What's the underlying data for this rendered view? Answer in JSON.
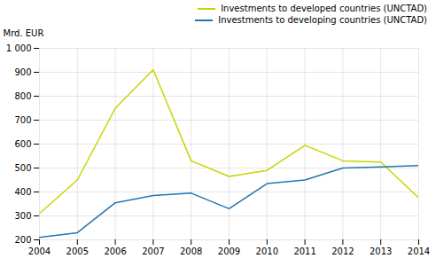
{
  "chart_data": {
    "type": "line",
    "x": [
      2004,
      2005,
      2006,
      2007,
      2008,
      2009,
      2010,
      2011,
      2012,
      2013,
      2014
    ],
    "series": [
      {
        "name": "Investments to developed countries (UNCTAD)",
        "color": "#c8d400",
        "values": [
          310,
          450,
          750,
          910,
          530,
          465,
          490,
          595,
          530,
          525,
          375
        ]
      },
      {
        "name": "Investments to developing countries (UNCTAD)",
        "color": "#1f77b4",
        "values": [
          210,
          230,
          355,
          385,
          395,
          330,
          435,
          450,
          500,
          505,
          510
        ]
      }
    ],
    "y_label": "Mrd. EUR",
    "xlim": [
      2004,
      2014
    ],
    "xticks": [
      2004,
      2005,
      2006,
      2007,
      2008,
      2009,
      2010,
      2011,
      2012,
      2013,
      2014
    ],
    "ylim": [
      200,
      1000
    ],
    "yticks": [
      200,
      300,
      400,
      500,
      600,
      700,
      800,
      900,
      {
        "value": 1000,
        "label": "1 000"
      }
    ],
    "grid": true,
    "legend": "upper right"
  }
}
